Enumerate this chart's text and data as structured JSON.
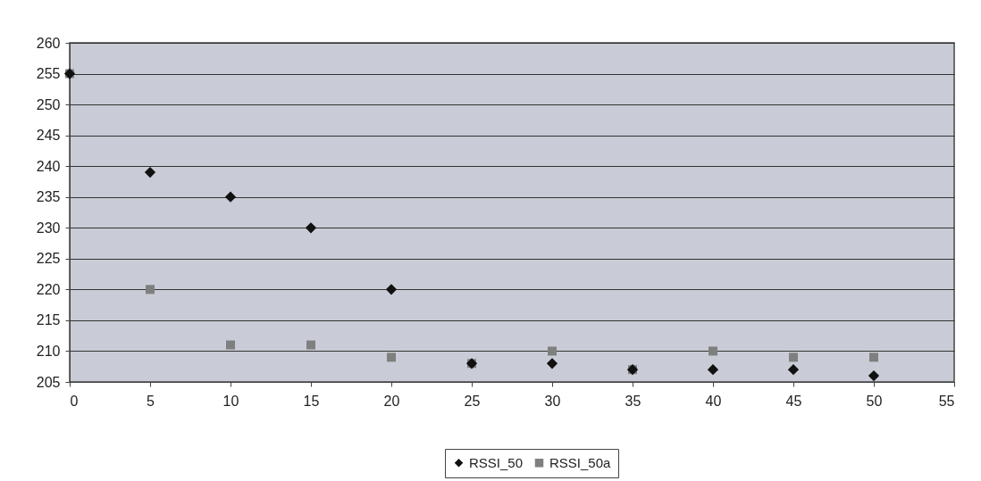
{
  "chart_data": {
    "type": "scatter",
    "x": [
      0,
      5,
      10,
      15,
      20,
      25,
      30,
      35,
      40,
      45,
      50
    ],
    "series": [
      {
        "name": "RSSI_50",
        "color": "#111111",
        "marker": "diamond",
        "values": [
          255,
          239,
          235,
          230,
          220,
          208,
          208,
          207,
          207,
          207,
          206
        ]
      },
      {
        "name": "RSSI_50a",
        "color": "#7f7f7f",
        "marker": "square",
        "values": [
          255,
          220,
          211,
          211,
          209,
          208,
          210,
          207,
          210,
          209,
          209
        ]
      }
    ],
    "xlim": [
      0,
      55
    ],
    "xticks": [
      0,
      5,
      10,
      15,
      20,
      25,
      30,
      35,
      40,
      45,
      50,
      55
    ],
    "ylim": [
      205,
      260
    ],
    "yticks": [
      205,
      210,
      215,
      220,
      225,
      230,
      235,
      240,
      245,
      250,
      255,
      260
    ],
    "grid": "y",
    "legend": "bottom"
  }
}
